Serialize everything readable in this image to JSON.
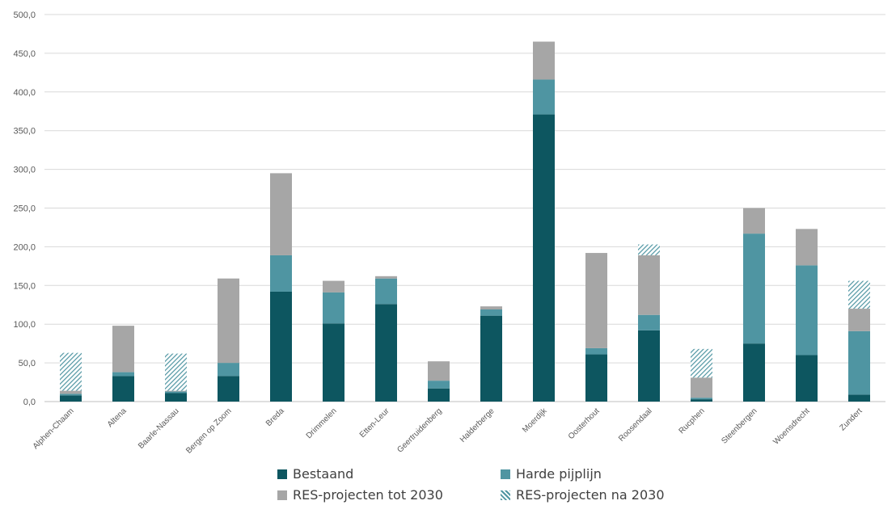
{
  "chart_data": {
    "type": "bar",
    "stacked": true,
    "title": "",
    "xlabel": "",
    "ylabel": "",
    "ylim": [
      0,
      500
    ],
    "ytick_step": 50,
    "ytick_labels": [
      "0,0",
      "50,0",
      "100,0",
      "150,0",
      "200,0",
      "250,0",
      "300,0",
      "350,0",
      "400,0",
      "450,0",
      "500,0"
    ],
    "grid": true,
    "legend_position": "bottom",
    "categories": [
      "Alphen-Chaam",
      "Altena",
      "Baarle-Nassau",
      "Bergen op Zoom",
      "Breda",
      "Drimmelen",
      "Etten-Leur",
      "Geertruidenberg",
      "Halderberge",
      "Moerdijk",
      "Oosterhout",
      "Roosendaal",
      "Rucphen",
      "Steenbergen",
      "Woensdrecht",
      "Zundert"
    ],
    "series": [
      {
        "name": "Bestaand",
        "color": "#0d5660",
        "pattern": "solid",
        "values": [
          8,
          33,
          11,
          33,
          142,
          101,
          126,
          17,
          111,
          371,
          61,
          92,
          3,
          75,
          60,
          9
        ]
      },
      {
        "name": "Harde pijplijn",
        "color": "#4f95a2",
        "pattern": "solid",
        "values": [
          2,
          5,
          2,
          17,
          47,
          40,
          33,
          10,
          8,
          45,
          8,
          20,
          2,
          142,
          116,
          82
        ]
      },
      {
        "name": "RES-projecten tot 2030",
        "color": "#a6a6a6",
        "pattern": "solid",
        "values": [
          4,
          60,
          1,
          109,
          106,
          15,
          3,
          25,
          4,
          49,
          123,
          77,
          26,
          33,
          47,
          29
        ]
      },
      {
        "name": "RES-projecten na 2030",
        "color": "#4f95a2",
        "pattern": "hatched",
        "values": [
          49,
          0,
          48,
          0,
          0,
          0,
          0,
          0,
          0,
          0,
          0,
          14,
          37,
          0,
          0,
          36
        ]
      }
    ]
  }
}
